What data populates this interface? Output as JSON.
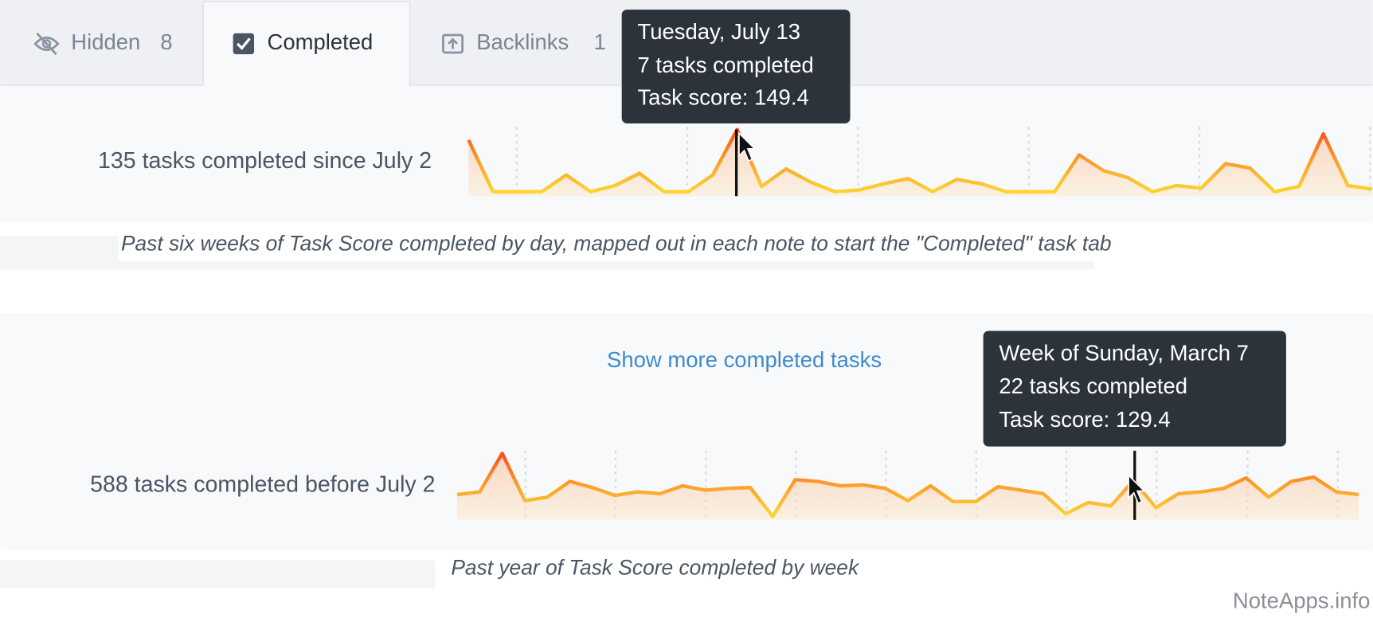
{
  "tabs": [
    {
      "label": "Hidden",
      "count": 8
    },
    {
      "label": "Completed"
    },
    {
      "label": "Backlinks",
      "count": 1
    }
  ],
  "recent": {
    "summary": "135 tasks completed since July 2",
    "sparkline": {
      "values": [
        125.2,
        6.1,
        6.1,
        6.1,
        44.4,
        6.1,
        20.2,
        48.5,
        6.1,
        6.1,
        44.4,
        149.4,
        18.2,
        58.6,
        28.3,
        6.1,
        10.1,
        24.2,
        36.3,
        6.1,
        34.3,
        24.2,
        6.1,
        6.1,
        6.1,
        90.9,
        54.5,
        38.4,
        6.1,
        20.2,
        14.1,
        70.7,
        60.6,
        6.1,
        18.2,
        139.3,
        20.2,
        12.1
      ]
    },
    "tooltip": {
      "title": "Tuesday, July 13",
      "tasks": "7 tasks completed",
      "score": "Task score: 149.4"
    },
    "caption": "Past six weeks of Task Score completed by day, mapped out in each note to start the \"Completed\" task tab"
  },
  "show_more": "Show more completed tasks",
  "history": {
    "summary": "588 tasks completed before July 2",
    "sparkline": {
      "values": [
        81.3,
        90.3,
        222.7,
        60.2,
        72.2,
        126.4,
        105.3,
        78.3,
        90.3,
        84.3,
        111.4,
        96.3,
        102.3,
        105.3,
        6.0,
        132.4,
        126.4,
        111.4,
        114.4,
        102.3,
        60.2,
        111.4,
        57.2,
        57.2,
        108.4,
        96.3,
        84.3,
        15.1,
        54.2,
        42.1,
        129.4,
        36.1,
        84.3,
        90.3,
        102.3,
        138.5,
        72.2,
        126.4,
        141.5,
        90.3,
        81.3
      ]
    },
    "tooltip": {
      "title": "Week of Sunday, March 7",
      "tasks": "22 tasks completed",
      "score": "Task score: 129.4"
    },
    "caption": "Past year of Task Score completed by week"
  },
  "watermark": "NoteApps.info"
}
